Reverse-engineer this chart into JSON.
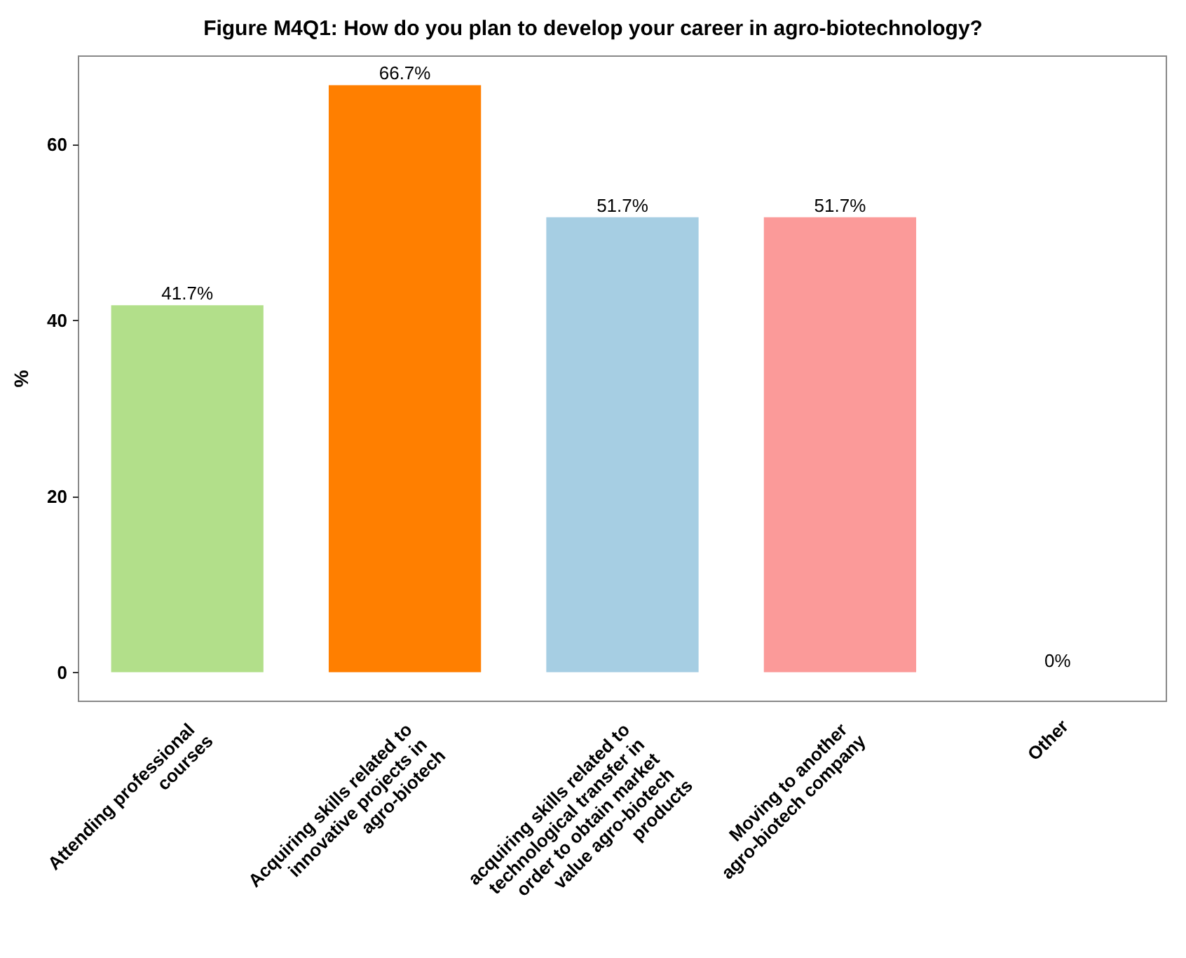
{
  "chart_data": {
    "type": "bar",
    "title": "Figure M4Q1: How do you plan to develop your career in agro-biotechnology?",
    "ylabel": "%",
    "categories": [
      "Attending professional courses",
      "Acquiring skills related to innovative projects in agro-biotech",
      "acquiring skills related to technological transfer in order to obtain market value agro-biotech products",
      "Moving to another agro-biotech company",
      "Other"
    ],
    "values": [
      41.7,
      66.7,
      51.7,
      51.7,
      0
    ],
    "colors": [
      "#b2df8a",
      "#ff7f00",
      "#a6cee3",
      "#fb9a99",
      null
    ],
    "value_labels": [
      "41.7%",
      "66.7%",
      "51.7%",
      "51.7%",
      "0%"
    ],
    "ylim": [
      -3.3,
      70
    ],
    "yticks": [
      0,
      20,
      40,
      60
    ],
    "grid": false
  }
}
